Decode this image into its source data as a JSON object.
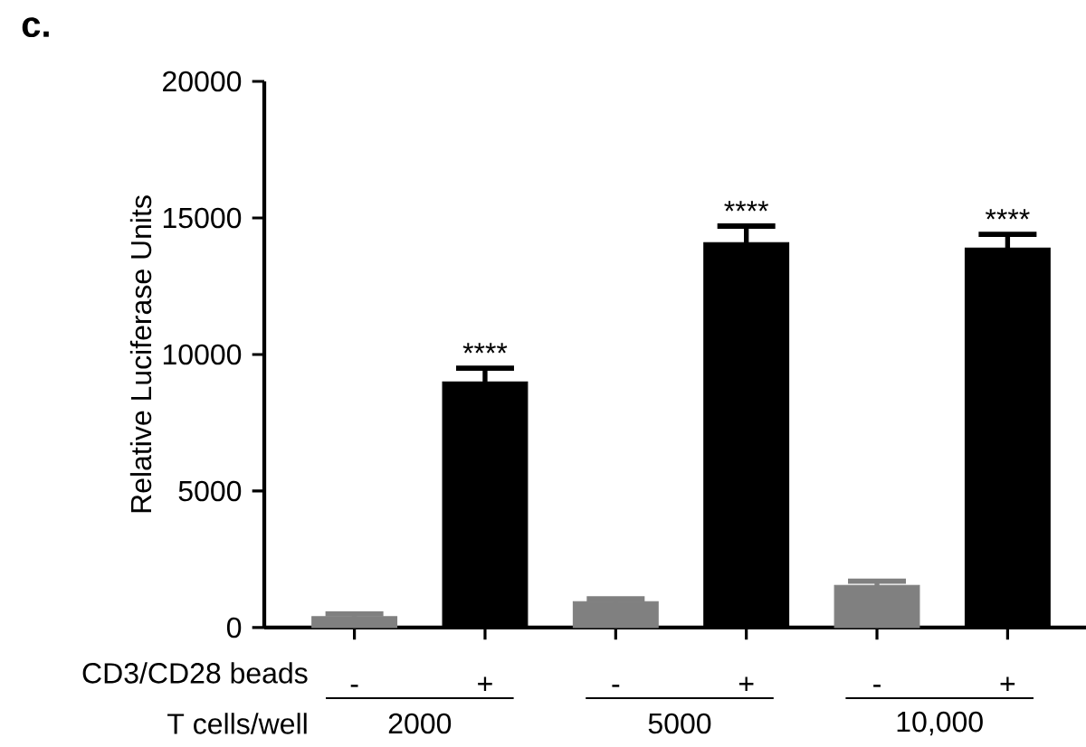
{
  "chart_data": {
    "type": "bar",
    "title": "c.",
    "ylabel": "Relative Luciferase Units",
    "categories": [
      "-",
      "+",
      "-",
      "+",
      "-",
      "+"
    ],
    "values": [
      400,
      9000,
      950,
      14100,
      1550,
      13900
    ],
    "errors": [
      100,
      500,
      100,
      600,
      150,
      500
    ],
    "colors": [
      "#808080",
      "#000000",
      "#808080",
      "#000000",
      "#808080",
      "#000000"
    ],
    "value_labels": [
      null,
      "****",
      null,
      "****",
      null,
      "****"
    ],
    "ylim": [
      0,
      20000
    ],
    "yticks": [
      0,
      5000,
      10000,
      15000,
      20000
    ],
    "grid": false,
    "annotations": [
      "CD3/CD28 beads",
      "T cells/well",
      "2000",
      "5000",
      "10,000"
    ]
  }
}
